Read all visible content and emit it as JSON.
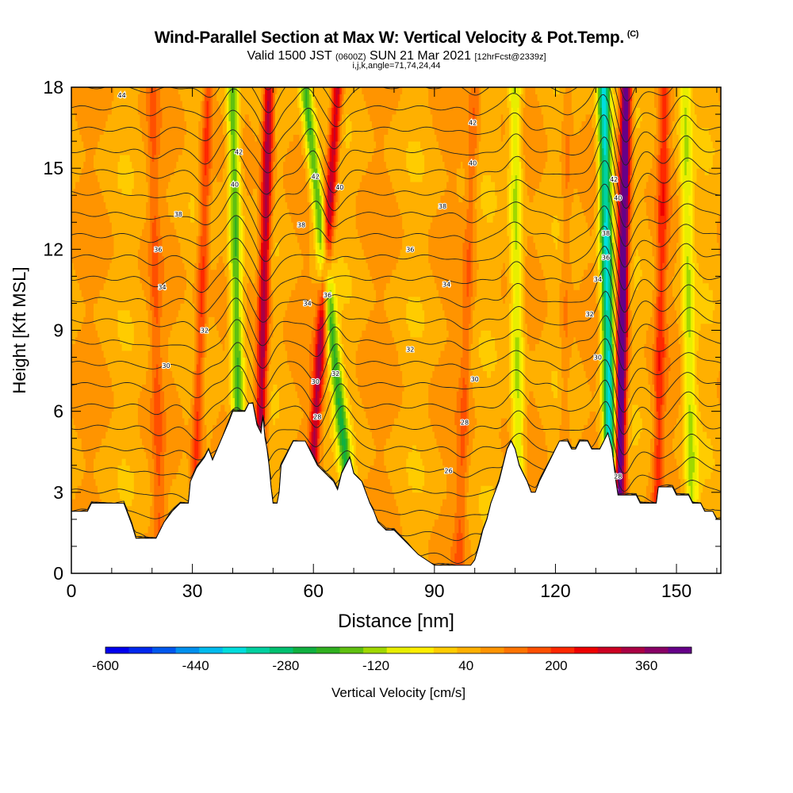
{
  "title": {
    "main": "Wind-Parallel Section at Max W: Vertical Velocity & Pot.Temp.",
    "copyright": "(C)",
    "valid_a": "Valid 1500 JST ",
    "valid_zulu": "(0600Z)",
    "valid_b": " SUN 21 Mar 2021 ",
    "forecast": "[12hrFcst@2339z]",
    "indices": "i,j,k,angle=71,74,24,44"
  },
  "chart_data": {
    "type": "heatmap",
    "xlabel": "Distance [nm]",
    "ylabel": "Height [Kft MSL]",
    "xlim": [
      0,
      161
    ],
    "ylim": [
      0,
      18
    ],
    "x_ticks": [
      0,
      30,
      60,
      90,
      120,
      150
    ],
    "y_ticks": [
      0,
      3,
      6,
      9,
      12,
      15,
      18
    ],
    "colorbar": {
      "label": "Vertical Velocity [cm/s]",
      "tick_labels": [
        "-600",
        "-440",
        "-280",
        "-120",
        "40",
        "200",
        "360"
      ],
      "tick_values": [
        -600,
        -440,
        -280,
        -120,
        40,
        200,
        360
      ],
      "range": [
        -600,
        440
      ],
      "colors": [
        "#0000ee",
        "#0028ee",
        "#0058ee",
        "#0090ee",
        "#00bbee",
        "#00dddd",
        "#00d0a0",
        "#00c070",
        "#10b040",
        "#30b020",
        "#60c010",
        "#a0d800",
        "#e8ee00",
        "#ffee00",
        "#ffcc00",
        "#ffb000",
        "#ff9400",
        "#ff7400",
        "#ff5000",
        "#ff2800",
        "#ee0000",
        "#cc0022",
        "#aa0044",
        "#880066",
        "#660088"
      ]
    },
    "updraft_bands": [
      {
        "x_top": 49,
        "x_bottom": 46,
        "w": 300
      },
      {
        "x_top": 66,
        "x_bottom": 58,
        "w": 260
      },
      {
        "x_top": 137.5,
        "x_bottom": 135.5,
        "w": 460
      },
      {
        "x_top": 34,
        "x_bottom": 30,
        "w": 150
      },
      {
        "x_top": 20,
        "x_bottom": 22,
        "w": 80
      },
      {
        "x_top": 100,
        "x_bottom": 96,
        "w": 80
      },
      {
        "x_top": 147,
        "x_bottom": 145,
        "w": 140
      },
      {
        "x_top": 123,
        "x_bottom": 122,
        "w": 60
      }
    ],
    "downdraft_bands": [
      {
        "x_top": 40,
        "x_bottom": 42,
        "w": -260
      },
      {
        "x_top": 58,
        "x_bottom": 71,
        "w": -260
      },
      {
        "x_top": 132,
        "x_bottom": 134,
        "w": -440
      },
      {
        "x_top": 110,
        "x_bottom": 111,
        "w": -180
      },
      {
        "x_top": 152,
        "x_bottom": 154,
        "w": -160
      }
    ],
    "terrain_kft": [
      [
        0,
        2.3
      ],
      [
        4,
        2.3
      ],
      [
        5,
        2.6
      ],
      [
        13,
        2.6
      ],
      [
        14,
        2.2
      ],
      [
        15,
        1.8
      ],
      [
        16,
        1.3
      ],
      [
        21,
        1.3
      ],
      [
        22,
        1.6
      ],
      [
        23,
        1.9
      ],
      [
        25,
        2.3
      ],
      [
        27,
        2.6
      ],
      [
        29,
        2.6
      ],
      [
        29.5,
        3.4
      ],
      [
        31,
        3.9
      ],
      [
        33,
        4.3
      ],
      [
        34,
        4.6
      ],
      [
        35,
        4.2
      ],
      [
        37,
        4.9
      ],
      [
        39,
        5.6
      ],
      [
        40,
        6.0
      ],
      [
        43,
        6.0
      ],
      [
        44,
        6.3
      ],
      [
        45,
        6.3
      ],
      [
        46,
        5.5
      ],
      [
        47,
        5.2
      ],
      [
        47.5,
        5.8
      ],
      [
        48,
        5.0
      ],
      [
        48.5,
        4.6
      ],
      [
        49,
        4.0
      ],
      [
        49.5,
        3.2
      ],
      [
        50,
        2.6
      ],
      [
        51,
        2.6
      ],
      [
        51.5,
        3.0
      ],
      [
        52,
        4.0
      ],
      [
        53,
        4.3
      ],
      [
        54,
        4.6
      ],
      [
        55,
        4.9
      ],
      [
        58,
        4.9
      ],
      [
        59,
        4.6
      ],
      [
        60,
        4.3
      ],
      [
        61,
        4.0
      ],
      [
        63,
        3.7
      ],
      [
        65,
        3.4
      ],
      [
        66,
        3.1
      ],
      [
        67,
        3.7
      ],
      [
        68,
        4.0
      ],
      [
        69,
        4.3
      ],
      [
        70,
        3.7
      ],
      [
        72,
        3.4
      ],
      [
        74,
        2.6
      ],
      [
        75,
        2.3
      ],
      [
        76,
        1.9
      ],
      [
        78,
        1.6
      ],
      [
        80,
        1.6
      ],
      [
        82,
        1.3
      ],
      [
        84,
        1.0
      ],
      [
        86,
        0.7
      ],
      [
        88,
        0.5
      ],
      [
        90,
        0.3
      ],
      [
        92,
        0.3
      ],
      [
        99,
        0.3
      ],
      [
        100,
        0.5
      ],
      [
        101,
        1.0
      ],
      [
        102,
        1.6
      ],
      [
        103,
        2.0
      ],
      [
        104,
        2.6
      ],
      [
        105,
        3.0
      ],
      [
        106,
        3.4
      ],
      [
        107,
        4.0
      ],
      [
        108,
        4.6
      ],
      [
        109,
        4.9
      ],
      [
        110,
        4.6
      ],
      [
        111,
        4.0
      ],
      [
        112,
        3.7
      ],
      [
        113,
        3.4
      ],
      [
        114,
        3.0
      ],
      [
        115,
        3.0
      ],
      [
        116,
        3.4
      ],
      [
        117,
        3.7
      ],
      [
        118,
        4.0
      ],
      [
        119,
        4.3
      ],
      [
        120,
        4.6
      ],
      [
        121,
        4.9
      ],
      [
        123,
        4.9
      ],
      [
        124,
        4.6
      ],
      [
        125,
        4.6
      ],
      [
        126,
        4.9
      ],
      [
        128,
        4.9
      ],
      [
        129,
        4.6
      ],
      [
        131,
        4.6
      ],
      [
        132,
        4.9
      ],
      [
        133,
        5.2
      ],
      [
        134,
        4.6
      ],
      [
        135,
        3.4
      ],
      [
        135.5,
        2.9
      ],
      [
        140,
        2.9
      ],
      [
        141,
        2.6
      ],
      [
        145,
        2.6
      ],
      [
        145.5,
        3.2
      ],
      [
        149,
        3.2
      ],
      [
        150,
        2.9
      ],
      [
        153,
        2.9
      ],
      [
        154,
        2.6
      ],
      [
        156,
        2.6
      ],
      [
        157,
        2.3
      ],
      [
        159,
        2.3
      ],
      [
        160,
        2.0
      ],
      [
        161,
        2.0
      ]
    ],
    "theta_contours_K": [
      21,
      22,
      23,
      24,
      25,
      26,
      27,
      28,
      29,
      30,
      31,
      32,
      33,
      34,
      35,
      36,
      37,
      38,
      39,
      40,
      41,
      42,
      43,
      44,
      45,
      46,
      47
    ],
    "contour_labels": [
      {
        "text": "44",
        "x": 12.5,
        "y": 17.7
      },
      {
        "text": "42",
        "x": 41.5,
        "y": 15.6
      },
      {
        "text": "40",
        "x": 40.5,
        "y": 14.4
      },
      {
        "text": "38",
        "x": 26.5,
        "y": 13.3
      },
      {
        "text": "36",
        "x": 21.5,
        "y": 12.0
      },
      {
        "text": "34",
        "x": 22.5,
        "y": 10.6
      },
      {
        "text": "32",
        "x": 33,
        "y": 9.0
      },
      {
        "text": "30",
        "x": 23.5,
        "y": 7.7
      },
      {
        "text": "42",
        "x": 60.5,
        "y": 14.7
      },
      {
        "text": "40",
        "x": 66.5,
        "y": 14.3
      },
      {
        "text": "38",
        "x": 57,
        "y": 12.9
      },
      {
        "text": "34",
        "x": 58.5,
        "y": 10.0
      },
      {
        "text": "36",
        "x": 63.5,
        "y": 10.3
      },
      {
        "text": "32",
        "x": 65.5,
        "y": 7.4
      },
      {
        "text": "30",
        "x": 60.5,
        "y": 7.1
      },
      {
        "text": "28",
        "x": 61,
        "y": 5.8
      },
      {
        "text": "42",
        "x": 99.5,
        "y": 16.7
      },
      {
        "text": "40",
        "x": 99.5,
        "y": 15.2
      },
      {
        "text": "38",
        "x": 92,
        "y": 13.6
      },
      {
        "text": "36",
        "x": 84,
        "y": 12.0
      },
      {
        "text": "34",
        "x": 93,
        "y": 10.7
      },
      {
        "text": "32",
        "x": 84,
        "y": 8.3
      },
      {
        "text": "30",
        "x": 100,
        "y": 7.2
      },
      {
        "text": "28",
        "x": 97.5,
        "y": 5.6
      },
      {
        "text": "26",
        "x": 93.5,
        "y": 3.8
      },
      {
        "text": "42",
        "x": 134.5,
        "y": 14.6
      },
      {
        "text": "40",
        "x": 135.5,
        "y": 13.9
      },
      {
        "text": "38",
        "x": 132.5,
        "y": 12.6
      },
      {
        "text": "36",
        "x": 132.5,
        "y": 11.7
      },
      {
        "text": "34",
        "x": 130.5,
        "y": 10.9
      },
      {
        "text": "32",
        "x": 128.5,
        "y": 9.6
      },
      {
        "text": "30",
        "x": 130.5,
        "y": 8.0
      },
      {
        "text": "28",
        "x": 135.5,
        "y": 3.6
      }
    ]
  }
}
